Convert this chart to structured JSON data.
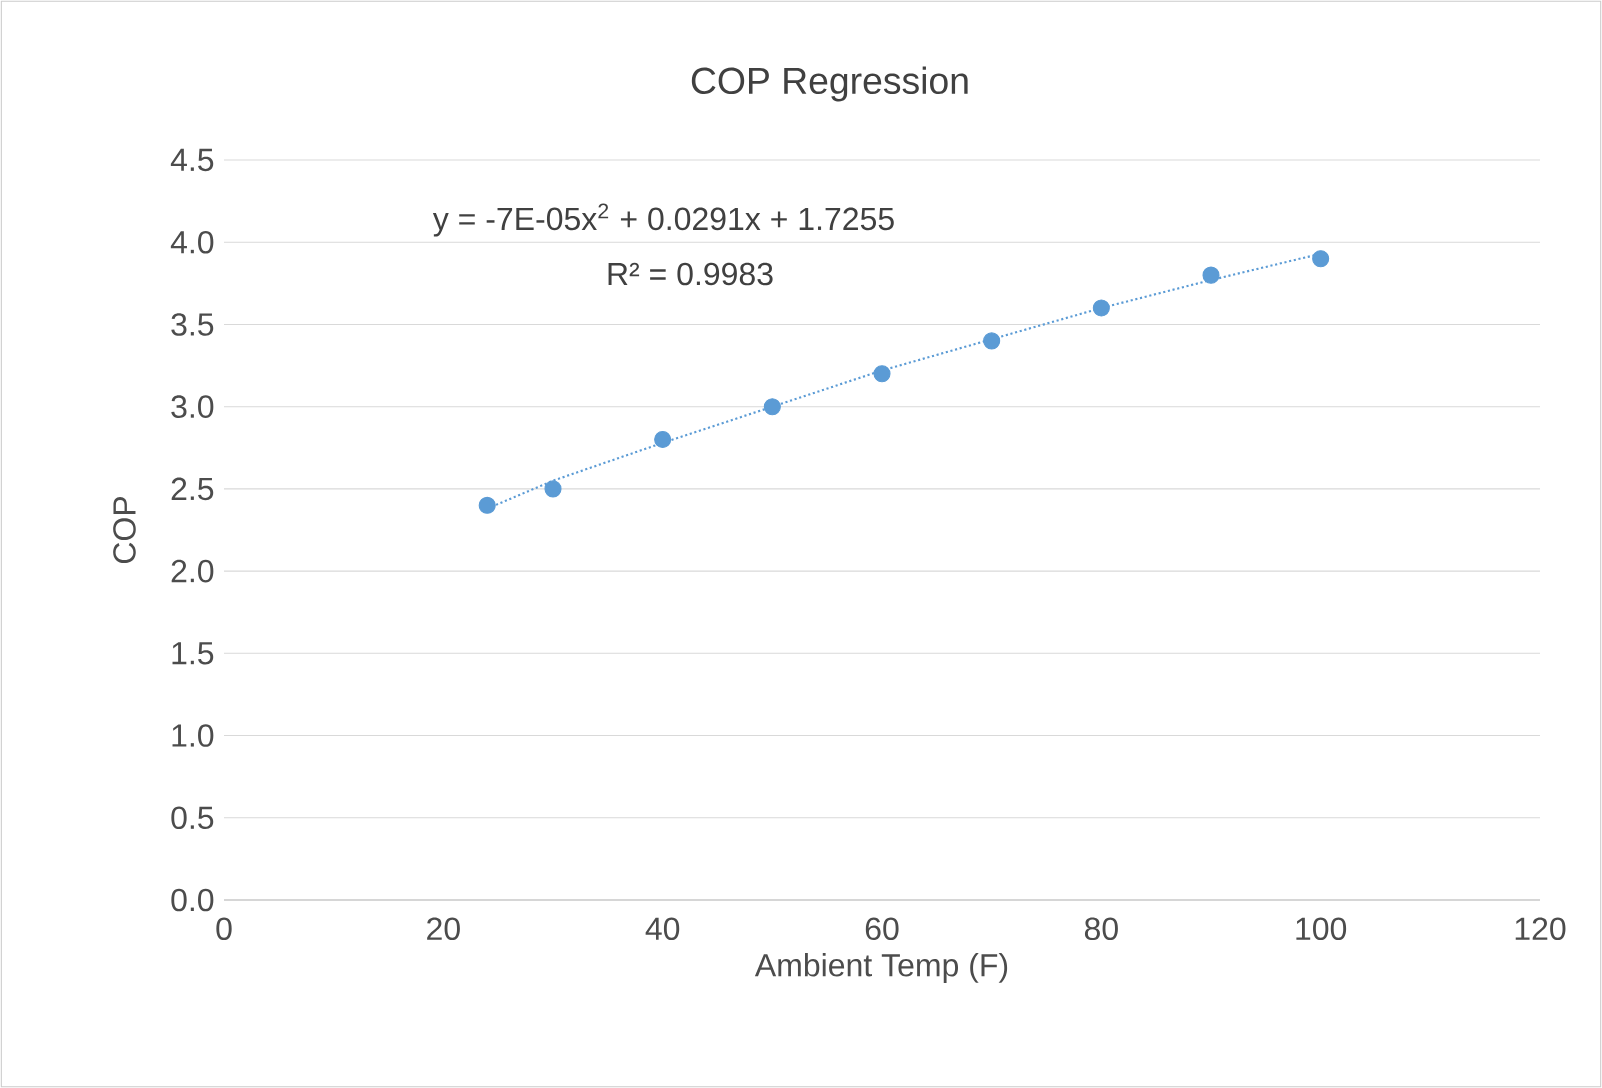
{
  "chart_data": {
    "type": "scatter",
    "title": "COP Regression",
    "xlabel": "Ambient Temp (F)",
    "ylabel": "COP",
    "annotations": [
      "y = -7E-05x$^{2}$ + 0.0291x + 1.7255",
      "R² = 0.9983"
    ],
    "series": [
      {
        "color": "#5b9bd5",
        "marker": "circle",
        "x": [
          24,
          30,
          40,
          50,
          60,
          70,
          80,
          90,
          100
        ],
        "values": [
          2.4,
          2.5,
          2.8,
          3.0,
          3.2,
          3.4,
          3.6,
          3.8,
          3.9
        ]
      },
      {
        "type": "line",
        "color": "#5b9bd5",
        "line_style": "dotted",
        "marker": "none",
        "x": [
          24,
          30,
          40,
          50,
          60,
          70,
          80,
          90,
          100
        ],
        "values": [
          2.38,
          2.55,
          2.78,
          3.0,
          3.22,
          3.41,
          3.6,
          3.77,
          3.93
        ]
      }
    ],
    "xlim": [
      0,
      120
    ],
    "xticks": [
      0,
      20,
      40,
      60,
      80,
      100,
      120
    ],
    "ylim": [
      0,
      4.5
    ],
    "yticks": [
      {
        "value": 0,
        "label": "0.0"
      },
      0.5,
      {
        "value": 1,
        "label": "1.0"
      },
      1.5,
      {
        "value": 2,
        "label": "2.0"
      },
      2.5,
      {
        "value": 3,
        "label": "3.0"
      },
      3.5,
      {
        "value": 4,
        "label": "4.0"
      },
      4.5
    ],
    "grid": "y"
  }
}
